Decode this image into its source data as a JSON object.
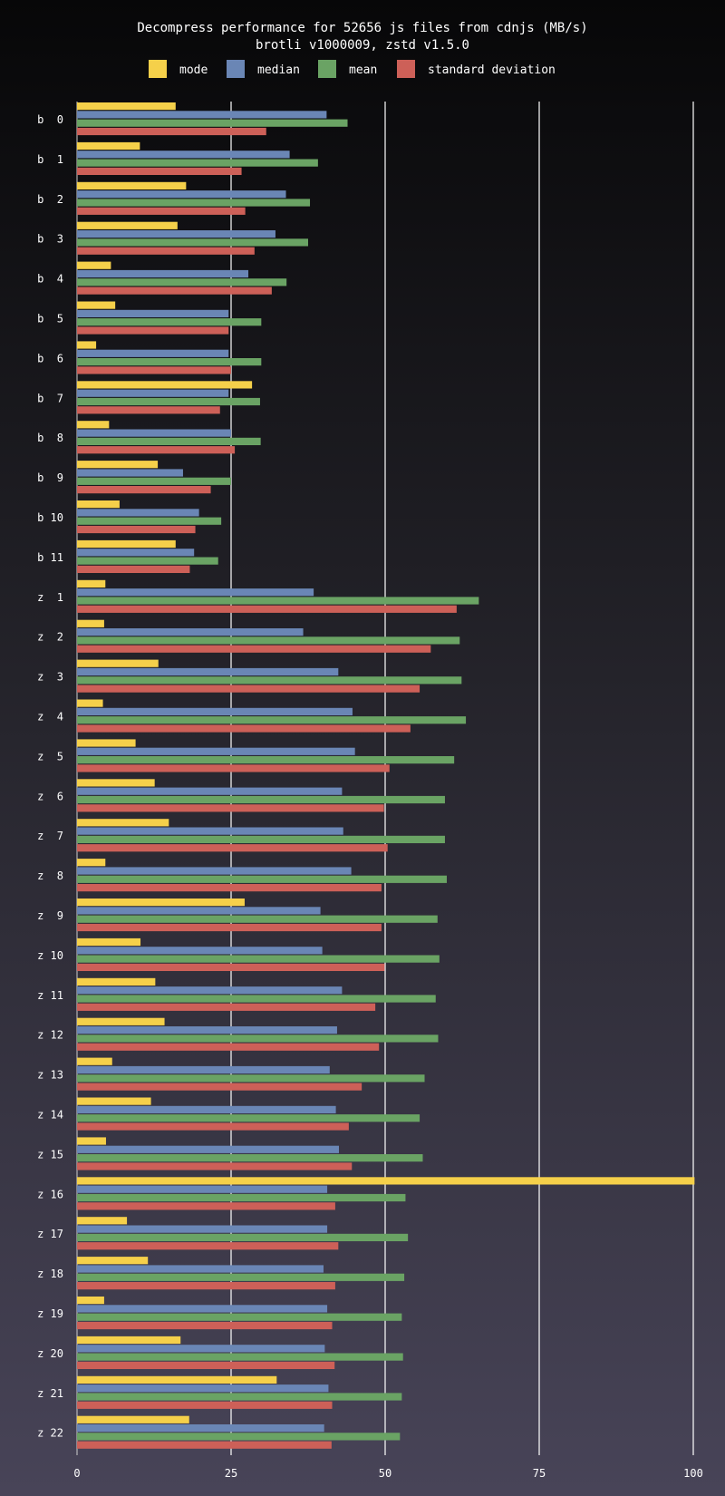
{
  "chart_data": {
    "type": "bar",
    "orientation": "horizontal",
    "title": "Decompress performance for 52656 js files from cdnjs (MB/s)",
    "subtitle": "brotli v1000009, zstd v1.5.0",
    "xlim": [
      0,
      100
    ],
    "xticks": [
      0,
      25,
      50,
      75,
      100
    ],
    "grid": true,
    "legend_position": "top",
    "categories": [
      "b  0",
      "b  1",
      "b  2",
      "b  3",
      "b  4",
      "b  5",
      "b  6",
      "b  7",
      "b  8",
      "b  9",
      "b 10",
      "b 11",
      "z  1",
      "z  2",
      "z  3",
      "z  4",
      "z  5",
      "z  6",
      "z  7",
      "z  8",
      "z  9",
      "z 10",
      "z 11",
      "z 12",
      "z 13",
      "z 14",
      "z 15",
      "z 16",
      "z 17",
      "z 18",
      "z 19",
      "z 20",
      "z 21",
      "z 22"
    ],
    "series": [
      {
        "name": "mode",
        "color": "#f5d04a",
        "values": [
          16,
          10.2,
          17.7,
          16.3,
          5.5,
          6.2,
          3.1,
          28.4,
          5.2,
          13.1,
          6.9,
          16,
          4.6,
          4.4,
          13.2,
          4.2,
          9.5,
          12.6,
          14.9,
          4.6,
          27.2,
          10.3,
          12.7,
          14.2,
          5.7,
          12.0,
          4.7,
          100.2,
          8.1,
          11.5,
          4.4,
          16.8,
          32.4,
          18.2
        ]
      },
      {
        "name": "median",
        "color": "#6a86b5",
        "values": [
          40.5,
          34.5,
          33.9,
          32.2,
          27.8,
          24.6,
          24.6,
          24.6,
          25.0,
          17.2,
          19.8,
          19.0,
          38.4,
          36.7,
          42.4,
          44.7,
          45.1,
          43.0,
          43.2,
          44.5,
          39.5,
          39.8,
          43.0,
          42.2,
          41.0,
          42.0,
          42.5,
          40.6,
          40.6,
          40.0,
          40.6,
          40.2,
          40.8,
          40.1
        ]
      },
      {
        "name": "mean",
        "color": "#6aa364",
        "values": [
          43.9,
          39.1,
          37.8,
          37.5,
          34.0,
          29.9,
          29.9,
          29.7,
          29.8,
          25.0,
          23.4,
          22.9,
          65.2,
          62.1,
          62.4,
          63.1,
          61.2,
          59.7,
          59.7,
          60.0,
          58.5,
          58.8,
          58.2,
          58.6,
          56.4,
          55.6,
          56.1,
          53.3,
          53.7,
          53.1,
          52.7,
          52.9,
          52.7,
          52.4
        ]
      },
      {
        "name": "standard deviation",
        "color": "#cd6058",
        "values": [
          30.7,
          26.7,
          27.3,
          28.8,
          31.6,
          24.6,
          25.0,
          23.2,
          25.6,
          21.7,
          19.2,
          18.3,
          61.6,
          57.4,
          55.6,
          54.1,
          50.7,
          49.8,
          50.4,
          49.4,
          49.4,
          49.9,
          48.4,
          49.0,
          46.2,
          44.1,
          44.6,
          41.9,
          42.4,
          41.9,
          41.4,
          41.8,
          41.4,
          41.3
        ]
      }
    ]
  }
}
